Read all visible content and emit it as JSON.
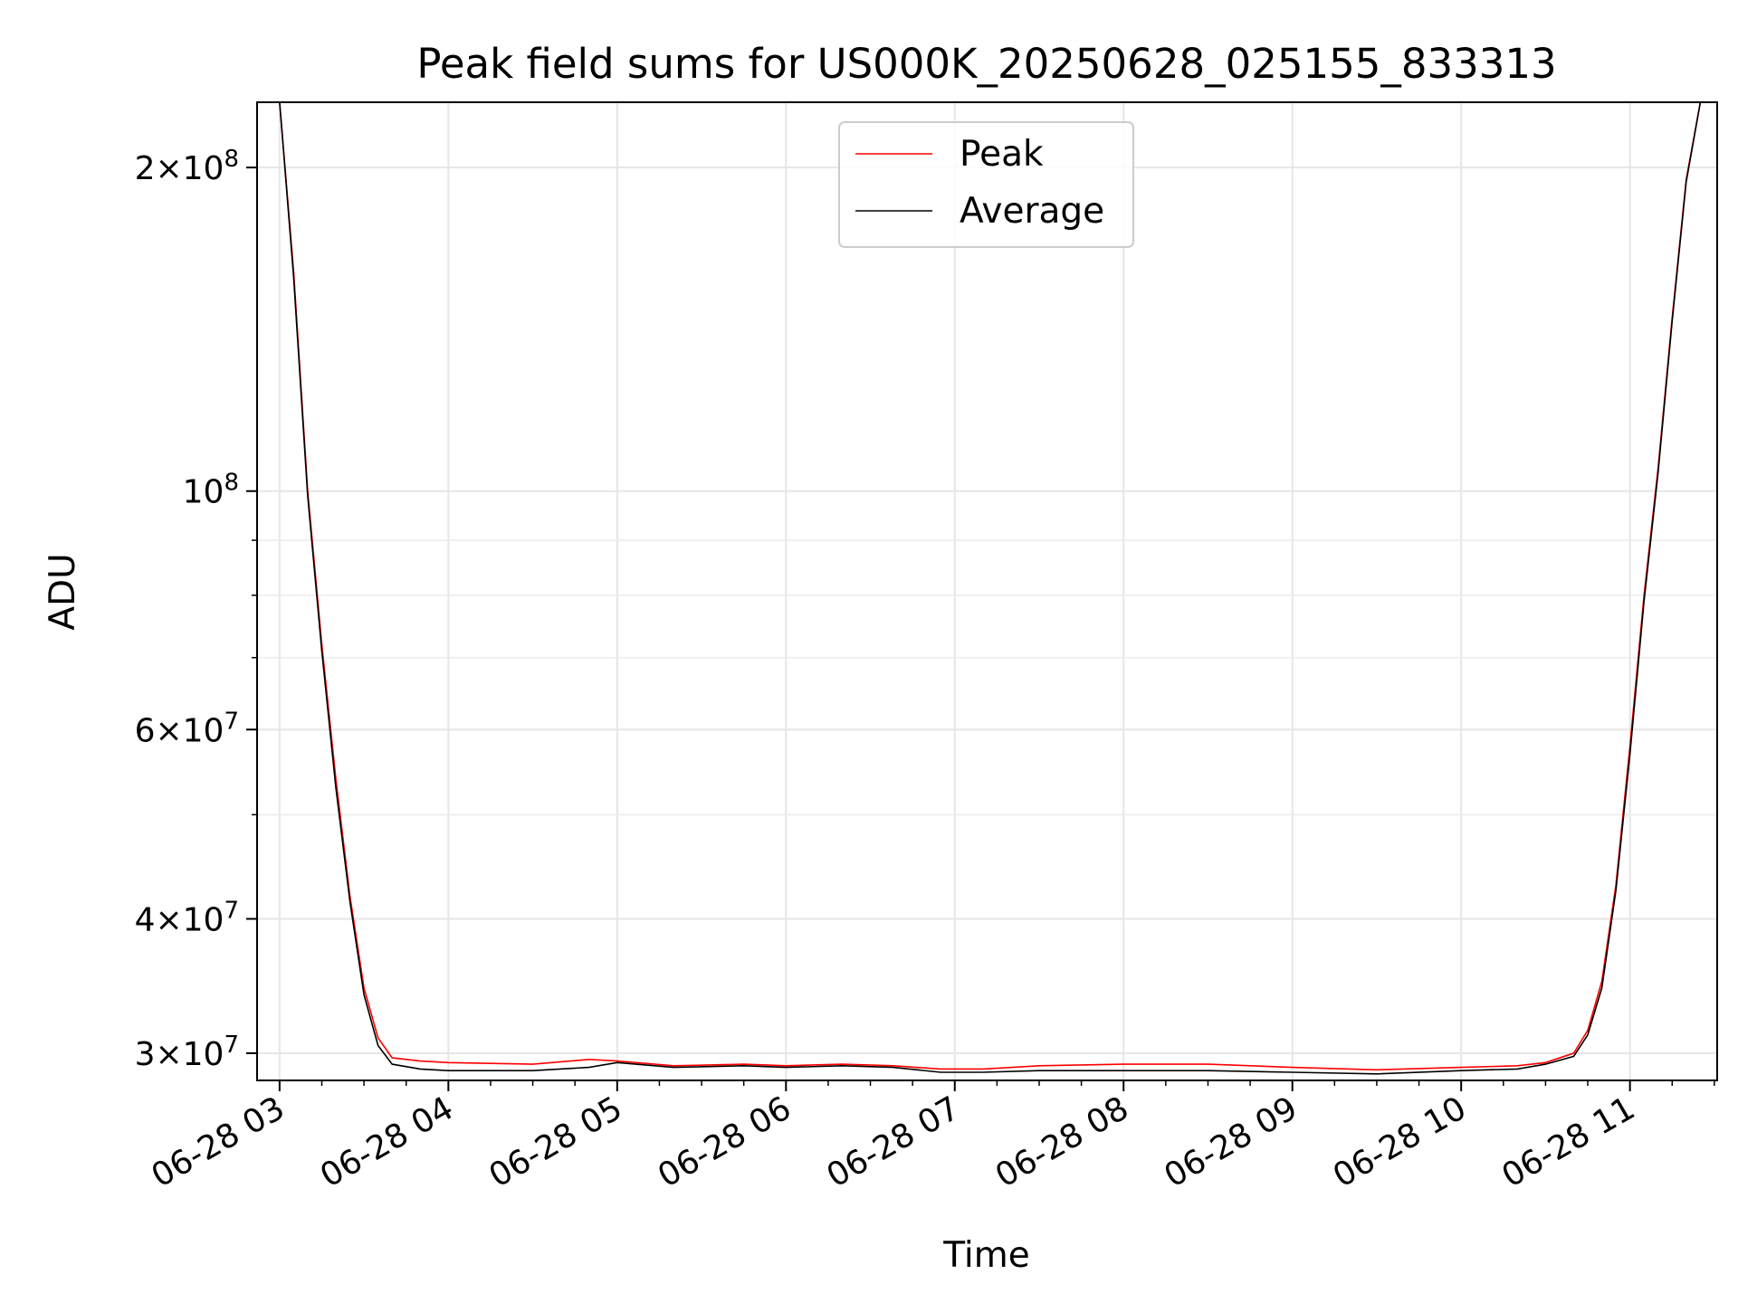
{
  "chart_data": {
    "type": "line",
    "title": "Peak field sums for US000K_20250628_025155_833313",
    "xlabel": "Time",
    "ylabel": "ADU",
    "yscale": "log",
    "xlim": [
      "06-28 02:52",
      "06-28 11:31"
    ],
    "ylim": [
      28300000,
      230000000
    ],
    "grid": true,
    "legend": "upper center",
    "x_ticks": [
      "06-28 03",
      "06-28 04",
      "06-28 05",
      "06-28 06",
      "06-28 07",
      "06-28 08",
      "06-28 09",
      "06-28 10",
      "06-28 11"
    ],
    "y_ticks": [
      {
        "value": 30000000,
        "base": "3",
        "exp": "7"
      },
      {
        "value": 40000000,
        "base": "4",
        "exp": "7"
      },
      {
        "value": 60000000,
        "base": "6",
        "exp": "7"
      },
      {
        "value": 100000000,
        "base": "",
        "exp": "8"
      },
      {
        "value": 200000000,
        "base": "2",
        "exp": "8"
      }
    ],
    "y_minor_ticks": [
      50000000,
      70000000,
      80000000,
      90000000
    ],
    "series": [
      {
        "name": "Peak",
        "color": "#ff0000",
        "x": [
          "06-28 02:52",
          "06-28 03:00",
          "06-28 03:05",
          "06-28 03:10",
          "06-28 03:15",
          "06-28 03:20",
          "06-28 03:25",
          "06-28 03:30",
          "06-28 03:35",
          "06-28 03:40",
          "06-28 03:50",
          "06-28 04:00",
          "06-28 04:30",
          "06-28 04:50",
          "06-28 05:00",
          "06-28 05:20",
          "06-28 05:45",
          "06-28 06:00",
          "06-28 06:20",
          "06-28 06:38",
          "06-28 06:55",
          "06-28 07:10",
          "06-28 07:30",
          "06-28 08:00",
          "06-28 08:30",
          "06-28 09:00",
          "06-28 09:30",
          "06-28 10:00",
          "06-28 10:20",
          "06-28 10:30",
          "06-28 10:40",
          "06-28 10:45",
          "06-28 10:50",
          "06-28 10:55",
          "06-28 11:00",
          "06-28 11:05",
          "06-28 11:10",
          "06-28 11:15",
          "06-28 11:20",
          "06-28 11:25",
          "06-28 11:31"
        ],
        "y": [
          230000000,
          230000000,
          160000000,
          100000000,
          72000000,
          54000000,
          42000000,
          34500000,
          31000000,
          29700000,
          29500000,
          29400000,
          29300000,
          29600000,
          29500000,
          29200000,
          29300000,
          29200000,
          29300000,
          29200000,
          29000000,
          29000000,
          29200000,
          29300000,
          29300000,
          29100000,
          28950000,
          29100000,
          29200000,
          29400000,
          30000000,
          31500000,
          35000000,
          43000000,
          58000000,
          80000000,
          105000000,
          145000000,
          195000000,
          230000000,
          230000000
        ]
      },
      {
        "name": "Average",
        "color": "#000000",
        "x": [
          "06-28 02:52",
          "06-28 03:00",
          "06-28 03:05",
          "06-28 03:10",
          "06-28 03:15",
          "06-28 03:20",
          "06-28 03:25",
          "06-28 03:30",
          "06-28 03:35",
          "06-28 03:40",
          "06-28 03:50",
          "06-28 04:00",
          "06-28 04:30",
          "06-28 04:50",
          "06-28 05:00",
          "06-28 05:20",
          "06-28 05:45",
          "06-28 06:00",
          "06-28 06:20",
          "06-28 06:38",
          "06-28 06:55",
          "06-28 07:10",
          "06-28 07:30",
          "06-28 08:00",
          "06-28 08:30",
          "06-28 09:00",
          "06-28 09:30",
          "06-28 10:00",
          "06-28 10:20",
          "06-28 10:30",
          "06-28 10:40",
          "06-28 10:45",
          "06-28 10:50",
          "06-28 10:55",
          "06-28 11:00",
          "06-28 11:05",
          "06-28 11:10",
          "06-28 11:15",
          "06-28 11:20",
          "06-28 11:25",
          "06-28 11:31"
        ],
        "y": [
          230000000,
          230000000,
          158000000,
          99000000,
          71000000,
          53000000,
          41500000,
          34000000,
          30500000,
          29300000,
          29000000,
          28900000,
          28900000,
          29100000,
          29400000,
          29100000,
          29200000,
          29100000,
          29200000,
          29100000,
          28800000,
          28800000,
          28900000,
          28900000,
          28900000,
          28800000,
          28700000,
          28900000,
          29000000,
          29300000,
          29800000,
          31200000,
          34500000,
          42500000,
          57000000,
          79000000,
          104000000,
          144000000,
          194000000,
          230000000,
          230000000
        ]
      }
    ]
  }
}
